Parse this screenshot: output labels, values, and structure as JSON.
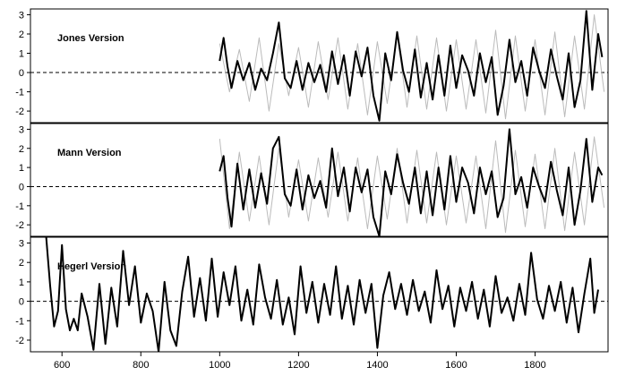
{
  "chart_data": [
    {
      "type": "line",
      "title": "Jones Version",
      "xlabel": "",
      "ylabel": "",
      "xlim": [
        520,
        1985
      ],
      "ylim": [
        -2.6,
        3.3
      ],
      "yticks": [
        "-2",
        "-1",
        "0",
        "1",
        "2",
        "3"
      ],
      "reference_line": {
        "y": 0,
        "style": "dashed"
      },
      "grid": false,
      "series": [
        {
          "role": "annual",
          "color": "#bbbbbb",
          "x": [
            1000,
            1025,
            1050,
            1075,
            1100,
            1125,
            1150,
            1175,
            1200,
            1225,
            1250,
            1275,
            1300,
            1325,
            1350,
            1375,
            1400,
            1425,
            1450,
            1475,
            1500,
            1525,
            1550,
            1575,
            1600,
            1625,
            1650,
            1675,
            1700,
            1725,
            1750,
            1775,
            1800,
            1825,
            1850,
            1875,
            1900,
            1925,
            1950,
            1975
          ],
          "y": [
            1.5,
            -1.0,
            1.2,
            -1.5,
            1.8,
            -2.0,
            1.5,
            -1.2,
            1.3,
            -1.8,
            1.6,
            -1.4,
            1.8,
            -1.9,
            1.5,
            -2.2,
            1.6,
            -1.6,
            2.0,
            -1.8,
            1.9,
            -1.9,
            1.8,
            -2.0,
            1.7,
            -1.9,
            1.7,
            -2.1,
            2.2,
            -2.4,
            1.9,
            -2.0,
            1.7,
            -2.2,
            2.1,
            -2.3,
            1.9,
            -1.9,
            3.0,
            -1.0
          ]
        },
        {
          "role": "smoothed",
          "color": "#000000",
          "x": [
            1000,
            1010,
            1020,
            1030,
            1045,
            1060,
            1075,
            1090,
            1105,
            1120,
            1135,
            1150,
            1165,
            1180,
            1195,
            1210,
            1225,
            1240,
            1255,
            1270,
            1285,
            1300,
            1315,
            1330,
            1345,
            1360,
            1375,
            1390,
            1405,
            1420,
            1435,
            1450,
            1465,
            1480,
            1495,
            1510,
            1525,
            1540,
            1555,
            1570,
            1585,
            1600,
            1615,
            1630,
            1645,
            1660,
            1675,
            1690,
            1705,
            1720,
            1735,
            1750,
            1765,
            1780,
            1795,
            1810,
            1825,
            1840,
            1855,
            1870,
            1885,
            1900,
            1915,
            1930,
            1945,
            1960,
            1970
          ],
          "y": [
            0.6,
            1.8,
            0.3,
            -0.8,
            0.6,
            -0.4,
            0.5,
            -0.9,
            0.2,
            -0.4,
            1.0,
            2.6,
            -0.3,
            -0.8,
            0.6,
            -0.9,
            0.5,
            -0.5,
            0.4,
            -1.0,
            1.1,
            -0.6,
            0.9,
            -1.2,
            1.1,
            -0.2,
            1.3,
            -1.2,
            -2.5,
            1.0,
            -0.4,
            2.1,
            0.1,
            -1.0,
            1.2,
            -1.3,
            0.5,
            -1.4,
            0.9,
            -1.2,
            1.4,
            -0.8,
            0.9,
            0.1,
            -1.2,
            1.0,
            -0.5,
            0.8,
            -2.2,
            -0.7,
            1.7,
            -0.5,
            0.6,
            -1.2,
            1.3,
            0.1,
            -0.8,
            1.2,
            -0.2,
            -1.4,
            1.0,
            -1.8,
            -0.4,
            3.2,
            -0.9,
            2.0,
            0.8
          ]
        }
      ]
    },
    {
      "type": "line",
      "title": "Mann Version",
      "xlabel": "",
      "ylabel": "",
      "xlim": [
        520,
        1985
      ],
      "ylim": [
        -2.6,
        3.3
      ],
      "yticks": [
        "-2",
        "-1",
        "0",
        "1",
        "2",
        "3"
      ],
      "reference_line": {
        "y": 0,
        "style": "dashed"
      },
      "grid": false,
      "series": [
        {
          "role": "annual",
          "color": "#bbbbbb",
          "x": [
            1000,
            1025,
            1050,
            1075,
            1100,
            1125,
            1150,
            1175,
            1200,
            1225,
            1250,
            1275,
            1300,
            1325,
            1350,
            1375,
            1400,
            1425,
            1450,
            1475,
            1500,
            1525,
            1550,
            1575,
            1600,
            1625,
            1650,
            1675,
            1700,
            1725,
            1750,
            1775,
            1800,
            1825,
            1850,
            1875,
            1900,
            1925,
            1950,
            1975
          ],
          "y": [
            2.5,
            -2.2,
            1.8,
            -1.8,
            1.6,
            -2.0,
            2.0,
            -1.6,
            1.4,
            -1.8,
            1.5,
            -1.6,
            1.8,
            -1.8,
            1.5,
            -2.2,
            1.6,
            -1.7,
            2.0,
            -1.9,
            1.9,
            -1.9,
            1.8,
            -2.0,
            1.6,
            -1.9,
            1.6,
            -2.2,
            2.4,
            -2.4,
            1.9,
            -2.1,
            1.7,
            -2.2,
            2.0,
            -2.3,
            1.8,
            -2.0,
            2.6,
            -1.1
          ]
        },
        {
          "role": "smoothed",
          "color": "#000000",
          "x": [
            1000,
            1010,
            1020,
            1030,
            1045,
            1060,
            1075,
            1090,
            1105,
            1120,
            1135,
            1150,
            1165,
            1180,
            1195,
            1210,
            1225,
            1240,
            1255,
            1270,
            1285,
            1300,
            1315,
            1330,
            1345,
            1360,
            1375,
            1390,
            1405,
            1420,
            1435,
            1450,
            1465,
            1480,
            1495,
            1510,
            1525,
            1540,
            1555,
            1570,
            1585,
            1600,
            1615,
            1630,
            1645,
            1660,
            1675,
            1690,
            1705,
            1720,
            1735,
            1750,
            1765,
            1780,
            1795,
            1810,
            1825,
            1840,
            1855,
            1870,
            1885,
            1900,
            1915,
            1930,
            1945,
            1960,
            1970
          ],
          "y": [
            0.8,
            1.6,
            -0.6,
            -2.1,
            1.2,
            -1.2,
            0.9,
            -1.1,
            0.7,
            -0.9,
            2.0,
            2.6,
            -0.4,
            -1.0,
            0.9,
            -1.2,
            0.6,
            -0.6,
            0.3,
            -1.1,
            2.0,
            -0.5,
            1.0,
            -1.3,
            1.0,
            -0.3,
            0.9,
            -1.6,
            -2.6,
            0.8,
            -0.4,
            1.7,
            0.2,
            -0.9,
            1.0,
            -1.4,
            0.8,
            -1.5,
            1.0,
            -1.2,
            1.6,
            -0.8,
            1.0,
            0.2,
            -1.4,
            1.0,
            -0.4,
            0.8,
            -1.6,
            -0.6,
            3.0,
            -0.4,
            0.5,
            -1.1,
            1.0,
            0.0,
            -0.8,
            1.3,
            -0.2,
            -1.5,
            1.0,
            -2.0,
            -0.2,
            2.5,
            -0.8,
            1.0,
            0.6
          ]
        }
      ]
    },
    {
      "type": "line",
      "title": "Hegerl Version",
      "xlabel": "",
      "ylabel": "",
      "xlim": [
        520,
        1985
      ],
      "ylim": [
        -2.6,
        3.3
      ],
      "xticks": [
        "600",
        "800",
        "1000",
        "1200",
        "1400",
        "1600",
        "1800"
      ],
      "yticks": [
        "-2",
        "-1",
        "0",
        "1",
        "2",
        "3"
      ],
      "reference_line": {
        "y": 0,
        "style": "dashed"
      },
      "grid": false,
      "series": [
        {
          "role": "smoothed",
          "color": "#000000",
          "x": [
            560,
            570,
            580,
            590,
            600,
            610,
            620,
            630,
            640,
            650,
            665,
            680,
            695,
            710,
            725,
            740,
            755,
            770,
            785,
            800,
            815,
            830,
            845,
            860,
            875,
            890,
            905,
            920,
            935,
            950,
            965,
            980,
            995,
            1010,
            1025,
            1040,
            1055,
            1070,
            1085,
            1100,
            1115,
            1130,
            1145,
            1160,
            1175,
            1190,
            1205,
            1220,
            1235,
            1250,
            1265,
            1280,
            1295,
            1310,
            1325,
            1340,
            1355,
            1370,
            1385,
            1400,
            1415,
            1430,
            1445,
            1460,
            1475,
            1490,
            1505,
            1520,
            1535,
            1550,
            1565,
            1580,
            1595,
            1610,
            1625,
            1640,
            1655,
            1670,
            1685,
            1700,
            1715,
            1730,
            1745,
            1760,
            1775,
            1790,
            1805,
            1820,
            1835,
            1850,
            1865,
            1880,
            1895,
            1910,
            1925,
            1940,
            1950,
            1960
          ],
          "y": [
            3.3,
            0.8,
            -1.3,
            -0.5,
            2.9,
            -0.4,
            -1.5,
            -0.9,
            -1.5,
            0.4,
            -0.8,
            -2.5,
            0.9,
            -2.2,
            0.7,
            -1.3,
            2.6,
            -0.2,
            1.8,
            -1.1,
            0.4,
            -0.5,
            -2.6,
            1.0,
            -1.5,
            -2.3,
            0.5,
            2.3,
            -0.8,
            1.2,
            -1.0,
            2.2,
            -0.8,
            1.5,
            -0.2,
            1.8,
            -1.0,
            0.6,
            -1.2,
            1.9,
            0.2,
            -0.9,
            1.1,
            -1.2,
            0.2,
            -1.7,
            1.8,
            -0.6,
            1.0,
            -1.1,
            0.9,
            -0.7,
            1.8,
            -0.9,
            0.8,
            -1.2,
            1.1,
            -0.6,
            0.9,
            -2.4,
            0.3,
            1.5,
            -0.4,
            0.9,
            -0.7,
            1.1,
            -0.5,
            0.5,
            -1.1,
            1.6,
            -0.4,
            0.8,
            -1.3,
            0.7,
            -0.5,
            1.0,
            -0.9,
            0.6,
            -1.3,
            1.3,
            -0.6,
            0.2,
            -1.0,
            0.9,
            -0.7,
            2.5,
            0.1,
            -0.9,
            0.8,
            -0.5,
            1.0,
            -1.1,
            0.7,
            -1.6,
            0.4,
            2.2,
            -0.6,
            0.6
          ]
        }
      ]
    }
  ]
}
